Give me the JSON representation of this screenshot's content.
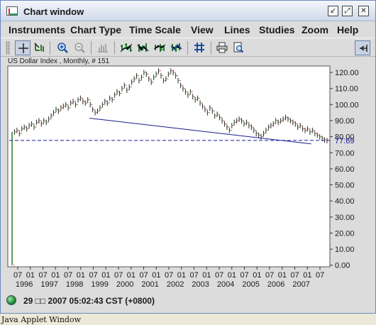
{
  "window": {
    "title": "Chart window"
  },
  "menubar": {
    "items": [
      "Instruments",
      "Chart Type",
      "Time Scale",
      "View",
      "Lines",
      "Studies",
      "Zoom",
      "Help"
    ]
  },
  "toolbar": {
    "buttons": [
      {
        "name": "crosshair-icon",
        "pressed": true
      },
      {
        "name": "draw-cursor-icon",
        "pressed": false
      },
      {
        "name": "zoom-in-icon",
        "pressed": false
      },
      {
        "name": "zoom-out-icon",
        "pressed": false
      },
      {
        "name": "bar-chart-icon",
        "pressed": false
      },
      {
        "name": "ohlc-bars-icon",
        "pressed": false
      },
      {
        "name": "candlestick-icon",
        "pressed": false
      },
      {
        "name": "hlc-bars-icon",
        "pressed": false
      },
      {
        "name": "compare-bars-icon",
        "pressed": false
      },
      {
        "name": "grid-icon",
        "pressed": false
      },
      {
        "name": "print-icon",
        "pressed": false
      },
      {
        "name": "print-preview-icon",
        "pressed": false
      },
      {
        "name": "dock-icon",
        "pressed": true
      }
    ]
  },
  "chart_data": {
    "type": "line",
    "title": "US Dollar Index , Monthly, # 151",
    "ylim": [
      -1,
      124
    ],
    "y_ticks": [
      "120.00",
      "110.00",
      "100.00",
      "90.00",
      "80.00",
      "70.00",
      "60.00",
      "50.00",
      "40.00",
      "30.00",
      "20.00",
      "10.00",
      "0.00"
    ],
    "y_tick_values": [
      120,
      110,
      100,
      90,
      80,
      70,
      60,
      50,
      40,
      30,
      20,
      10,
      0
    ],
    "x_month_labels": [
      "07",
      "01",
      "07",
      "01",
      "07",
      "01",
      "07",
      "01",
      "07",
      "01",
      "07",
      "01",
      "07",
      "01",
      "07",
      "01",
      "07",
      "01",
      "07",
      "01",
      "07",
      "01",
      "07",
      "01",
      "07"
    ],
    "x_year_labels": [
      "1996",
      "1997",
      "1998",
      "1999",
      "2000",
      "2001",
      "2002",
      "2003",
      "2004",
      "2005",
      "2006",
      "2007"
    ],
    "series": [
      {
        "values": [
          0,
          83,
          84,
          82,
          85,
          86,
          85,
          87,
          88,
          86,
          89,
          90,
          88,
          90,
          89,
          91,
          93,
          95,
          97,
          96,
          98,
          99,
          100,
          98,
          101,
          102,
          100,
          103,
          104,
          102,
          101,
          103,
          100,
          97,
          95,
          96,
          98,
          100,
          102,
          101,
          104,
          103,
          106,
          108,
          107,
          110,
          112,
          109,
          111,
          114,
          116,
          118,
          115,
          117,
          120,
          119,
          116,
          114,
          117,
          119,
          121,
          118,
          115,
          116,
          119,
          121,
          120,
          118,
          115,
          112,
          110,
          108,
          106,
          108,
          105,
          103,
          104,
          101,
          99,
          97,
          95,
          98,
          96,
          93,
          94,
          92,
          90,
          88,
          86,
          84,
          87,
          89,
          90,
          91,
          90,
          88,
          89,
          87,
          86,
          84,
          82,
          81,
          80,
          82,
          84,
          86,
          87,
          88,
          90,
          89,
          90,
          91,
          92,
          91,
          90,
          89,
          88,
          86,
          87,
          85,
          84,
          85,
          83,
          84,
          82,
          81,
          80,
          79,
          78,
          77.69
        ],
        "color": "#2b2b2b"
      }
    ],
    "trendline": {
      "from": [
        1999.1,
        91.5
      ],
      "to": [
        2007.9,
        75.5
      ],
      "color": "#1a1a8c"
    },
    "current_price": {
      "value": 77.69,
      "label": "77.69",
      "color": "#1a1aa0"
    },
    "grid": false
  },
  "statusbar": {
    "text": "29 □□ 2007 05:02:43  CST (+0800)"
  },
  "applet_bar": {
    "text": "Java Applet Window"
  }
}
